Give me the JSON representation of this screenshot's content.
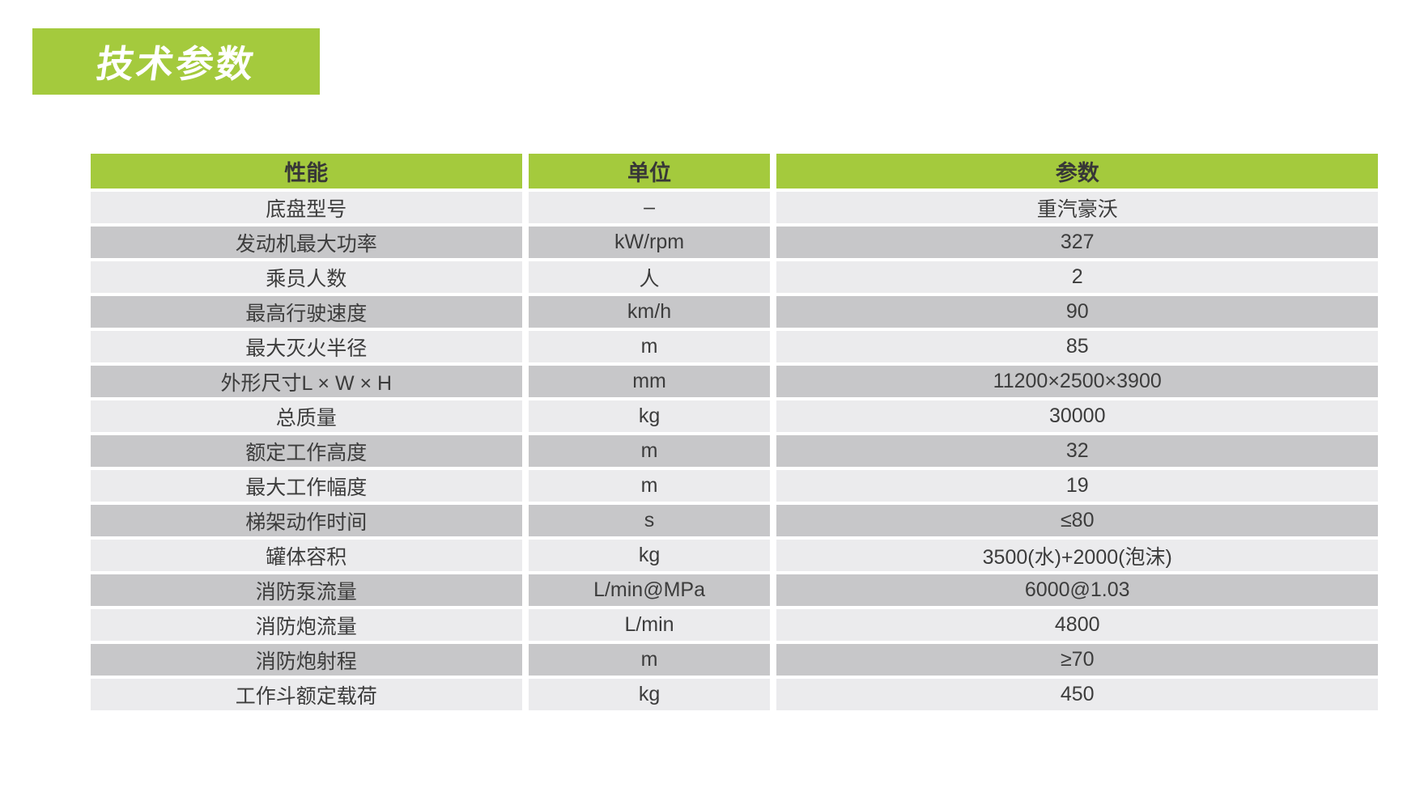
{
  "page_title": "技术参数",
  "table": {
    "headers": [
      "性能",
      "单位",
      "参数"
    ],
    "rows": [
      [
        "底盘型号",
        "–",
        "重汽豪沃"
      ],
      [
        "发动机最大功率",
        "kW/rpm",
        "327"
      ],
      [
        "乘员人数",
        "人",
        "2"
      ],
      [
        "最高行驶速度",
        "km/h",
        "90"
      ],
      [
        "最大灭火半径",
        "m",
        "85"
      ],
      [
        "外形尺寸L × W × H",
        "mm",
        "11200×2500×3900"
      ],
      [
        "总质量",
        "kg",
        "30000"
      ],
      [
        "额定工作高度",
        "m",
        "32"
      ],
      [
        "最大工作幅度",
        "m",
        "19"
      ],
      [
        "梯架动作时间",
        "s",
        "≤80"
      ],
      [
        "罐体容积",
        "kg",
        "3500(水)+2000(泡沫)"
      ],
      [
        "消防泵流量",
        "L/min@MPa",
        "6000@1.03"
      ],
      [
        "消防炮流量",
        "L/min",
        "4800"
      ],
      [
        "消防炮射程",
        "m",
        "≥70"
      ],
      [
        "工作斗额定载荷",
        "kg",
        "450"
      ]
    ]
  },
  "colors": {
    "accent_green": "#a4ca3d",
    "row_light": "#ebebed",
    "row_dark": "#c7c7c9",
    "header_text": "#373737",
    "cell_text": "#3c3c3c"
  }
}
